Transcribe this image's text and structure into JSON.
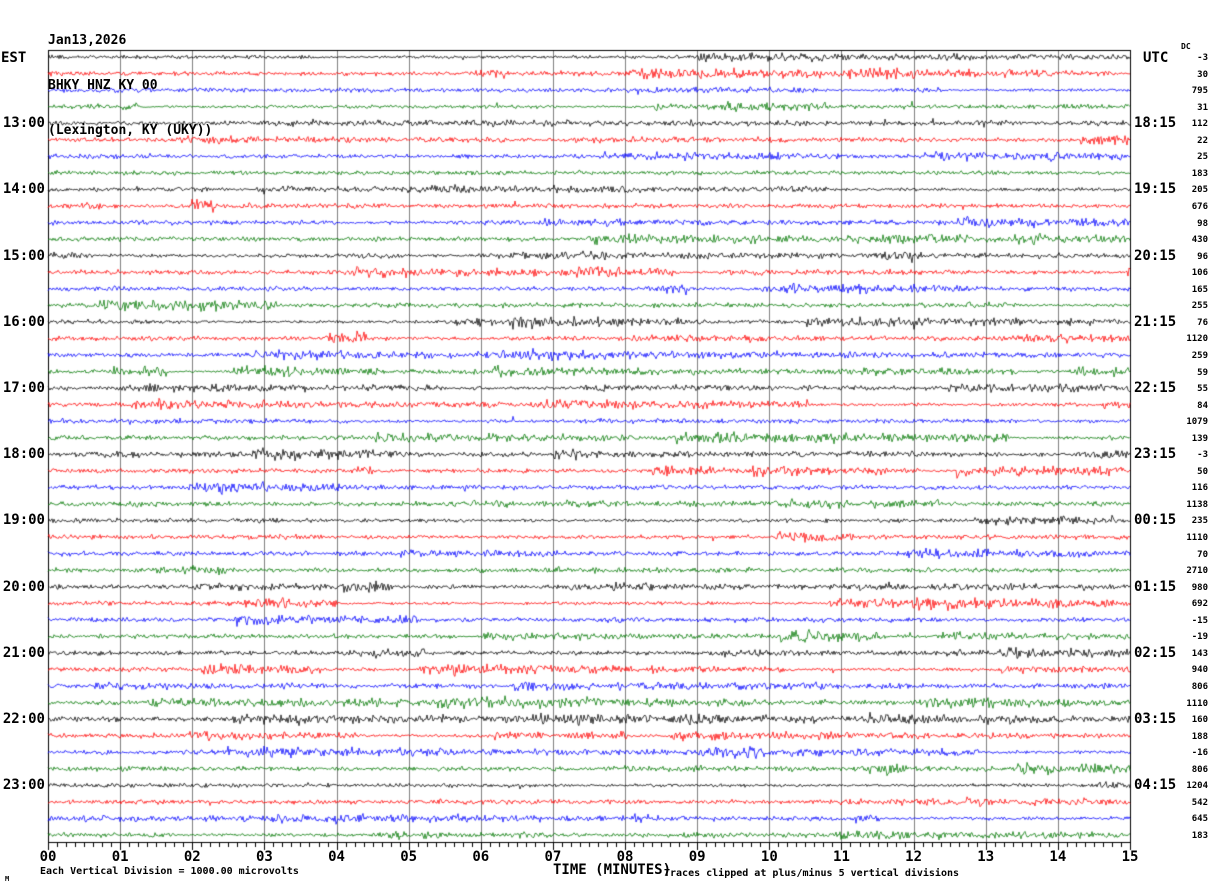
{
  "header": {
    "date": "Jan13,2026",
    "station": "BHKY HNZ KY 00",
    "location": "(Lexington, KY (UKY))"
  },
  "left_axis": {
    "tz_label": "EST"
  },
  "right_axis": {
    "tz_label": "UTC",
    "dc_header": "DC"
  },
  "x_axis": {
    "title": "TIME (MINUTES)",
    "labels": [
      "00",
      "01",
      "02",
      "03",
      "04",
      "05",
      "06",
      "07",
      "08",
      "09",
      "10",
      "11",
      "12",
      "13",
      "14",
      "15"
    ]
  },
  "footer": {
    "scale_note": "Each Vertical Division = 1000.00 microvolts",
    "clip_note": "Traces clipped at plus/minus 5 vertical divisions",
    "corner_mark": "M"
  },
  "colors": {
    "trace_cycle": [
      "#000000",
      "#ff0000",
      "#0000ff",
      "#007700"
    ],
    "grid_line": "#808080",
    "axis": "#000000",
    "background": "#ffffff"
  },
  "chart_data": {
    "type": "line",
    "subtype": "helicorder-seismogram",
    "title": "BHKY HNZ KY 00 (Lexington, KY (UKY)) Jan13,2026",
    "xlabel": "TIME (MINUTES)",
    "x_range_minutes": [
      0,
      15
    ],
    "minutes_per_row": 15,
    "row_count": 48,
    "row_color_cycle": [
      "black",
      "red",
      "blue",
      "green"
    ],
    "grid": "vertical gridlines at each minute",
    "scale": "Each Vertical Division = 1000.00 microvolts",
    "clipping": "Traces clipped at plus/minus 5 vertical divisions",
    "waveform_note": "Traces show ambient seismic background noise; individual sample values are not readable from the image. dc = DC offset value printed in right margin.",
    "rows": [
      {
        "est": "",
        "utc": "",
        "dc": -3
      },
      {
        "est": "",
        "utc": "",
        "dc": 30
      },
      {
        "est": "",
        "utc": "",
        "dc": 795
      },
      {
        "est": "",
        "utc": "",
        "dc": 31
      },
      {
        "est": "13:00",
        "utc": "18:15",
        "dc": 112
      },
      {
        "est": "",
        "utc": "",
        "dc": 22
      },
      {
        "est": "",
        "utc": "",
        "dc": 25
      },
      {
        "est": "",
        "utc": "",
        "dc": 183
      },
      {
        "est": "14:00",
        "utc": "19:15",
        "dc": 205
      },
      {
        "est": "",
        "utc": "",
        "dc": 676
      },
      {
        "est": "",
        "utc": "",
        "dc": 98
      },
      {
        "est": "",
        "utc": "",
        "dc": 430
      },
      {
        "est": "15:00",
        "utc": "20:15",
        "dc": 96
      },
      {
        "est": "",
        "utc": "",
        "dc": 106
      },
      {
        "est": "",
        "utc": "",
        "dc": 165
      },
      {
        "est": "",
        "utc": "",
        "dc": 255
      },
      {
        "est": "16:00",
        "utc": "21:15",
        "dc": 76
      },
      {
        "est": "",
        "utc": "",
        "dc": 1120
      },
      {
        "est": "",
        "utc": "",
        "dc": 259
      },
      {
        "est": "",
        "utc": "",
        "dc": 59
      },
      {
        "est": "17:00",
        "utc": "22:15",
        "dc": 55
      },
      {
        "est": "",
        "utc": "",
        "dc": 84
      },
      {
        "est": "",
        "utc": "",
        "dc": 1079
      },
      {
        "est": "",
        "utc": "",
        "dc": 139
      },
      {
        "est": "18:00",
        "utc": "23:15",
        "dc": -3
      },
      {
        "est": "",
        "utc": "",
        "dc": 50
      },
      {
        "est": "",
        "utc": "",
        "dc": 116
      },
      {
        "est": "",
        "utc": "",
        "dc": 1138
      },
      {
        "est": "19:00",
        "utc": "00:15",
        "dc": 235
      },
      {
        "est": "",
        "utc": "",
        "dc": 1110
      },
      {
        "est": "",
        "utc": "",
        "dc": 70
      },
      {
        "est": "",
        "utc": "",
        "dc": 2710
      },
      {
        "est": "20:00",
        "utc": "01:15",
        "dc": 980
      },
      {
        "est": "",
        "utc": "",
        "dc": 692
      },
      {
        "est": "",
        "utc": "",
        "dc": -15
      },
      {
        "est": "",
        "utc": "",
        "dc": -19
      },
      {
        "est": "21:00",
        "utc": "02:15",
        "dc": 143
      },
      {
        "est": "",
        "utc": "",
        "dc": 940
      },
      {
        "est": "",
        "utc": "",
        "dc": 806
      },
      {
        "est": "",
        "utc": "",
        "dc": 1110
      },
      {
        "est": "22:00",
        "utc": "03:15",
        "dc": 160
      },
      {
        "est": "",
        "utc": "",
        "dc": 188
      },
      {
        "est": "",
        "utc": "",
        "dc": -16
      },
      {
        "est": "",
        "utc": "",
        "dc": 806
      },
      {
        "est": "23:00",
        "utc": "04:15",
        "dc": 1204
      },
      {
        "est": "",
        "utc": "",
        "dc": 542
      },
      {
        "est": "",
        "utc": "",
        "dc": 645
      },
      {
        "est": "",
        "utc": "",
        "dc": 183
      }
    ]
  }
}
